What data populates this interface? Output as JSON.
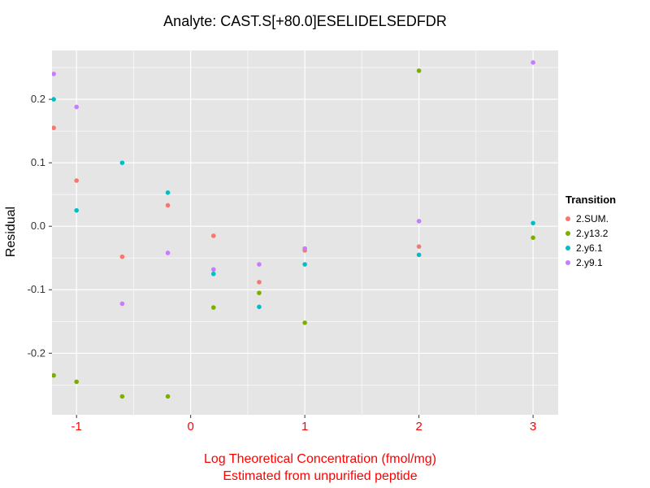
{
  "chart_data": {
    "type": "scatter",
    "title": "Analyte: CAST.S[+80.0]ESELIDELSEDFDR",
    "ylabel": "Residual",
    "xlabel_line1": "Log Theoretical Concentration (fmol/mg)",
    "xlabel_line2": "Estimated from unpurified peptide",
    "xlim": [
      -1.215,
      3.22
    ],
    "ylim": [
      -0.297,
      0.277
    ],
    "x_ticks": [
      -1,
      0,
      1,
      2,
      3
    ],
    "y_ticks": [
      -0.2,
      -0.1,
      0.0,
      0.1,
      0.2
    ],
    "x_minor_ticks": [
      -0.5,
      0.5,
      1.5,
      2.5
    ],
    "y_minor_ticks": [
      -0.25,
      -0.15,
      -0.05,
      0.05,
      0.15,
      0.25
    ],
    "grid": true,
    "legend_position": "right",
    "legend_title": "Transition",
    "panel_background": "#E5E5E5",
    "gridline_color": "#FFFFFF",
    "x_text_color": "#FF0000",
    "y_text_color": "#333333",
    "series": [
      {
        "name": "2.SUM.",
        "color": "#F8766D",
        "points": [
          [
            -1.2,
            0.155
          ],
          [
            -1,
            0.072
          ],
          [
            -0.6,
            -0.048
          ],
          [
            -0.2,
            0.033
          ],
          [
            0.2,
            -0.015
          ],
          [
            0.6,
            -0.088
          ],
          [
            1,
            -0.038
          ],
          [
            2,
            -0.032
          ]
        ]
      },
      {
        "name": "2.y13.2",
        "color": "#7CAE00",
        "points": [
          [
            -1.2,
            -0.235
          ],
          [
            -1,
            -0.245
          ],
          [
            -0.6,
            -0.268
          ],
          [
            -0.2,
            -0.268
          ],
          [
            0.2,
            -0.128
          ],
          [
            0.6,
            -0.105
          ],
          [
            1,
            -0.152
          ],
          [
            2,
            0.245
          ],
          [
            3,
            -0.018
          ]
        ]
      },
      {
        "name": "2.y6.1",
        "color": "#00BFC4",
        "points": [
          [
            -1.2,
            0.2
          ],
          [
            -1,
            0.025
          ],
          [
            -0.6,
            0.1
          ],
          [
            -0.2,
            0.053
          ],
          [
            0.2,
            -0.075
          ],
          [
            0.6,
            -0.127
          ],
          [
            1,
            -0.06
          ],
          [
            2,
            -0.045
          ],
          [
            3,
            0.005
          ]
        ]
      },
      {
        "name": "2.y9.1",
        "color": "#C77CFF",
        "points": [
          [
            -1.2,
            0.24
          ],
          [
            -1,
            0.188
          ],
          [
            -0.6,
            -0.122
          ],
          [
            -0.2,
            -0.042
          ],
          [
            0.2,
            -0.068
          ],
          [
            0.6,
            -0.06
          ],
          [
            1,
            -0.035
          ],
          [
            2,
            0.008
          ],
          [
            3,
            0.258
          ]
        ]
      }
    ]
  }
}
